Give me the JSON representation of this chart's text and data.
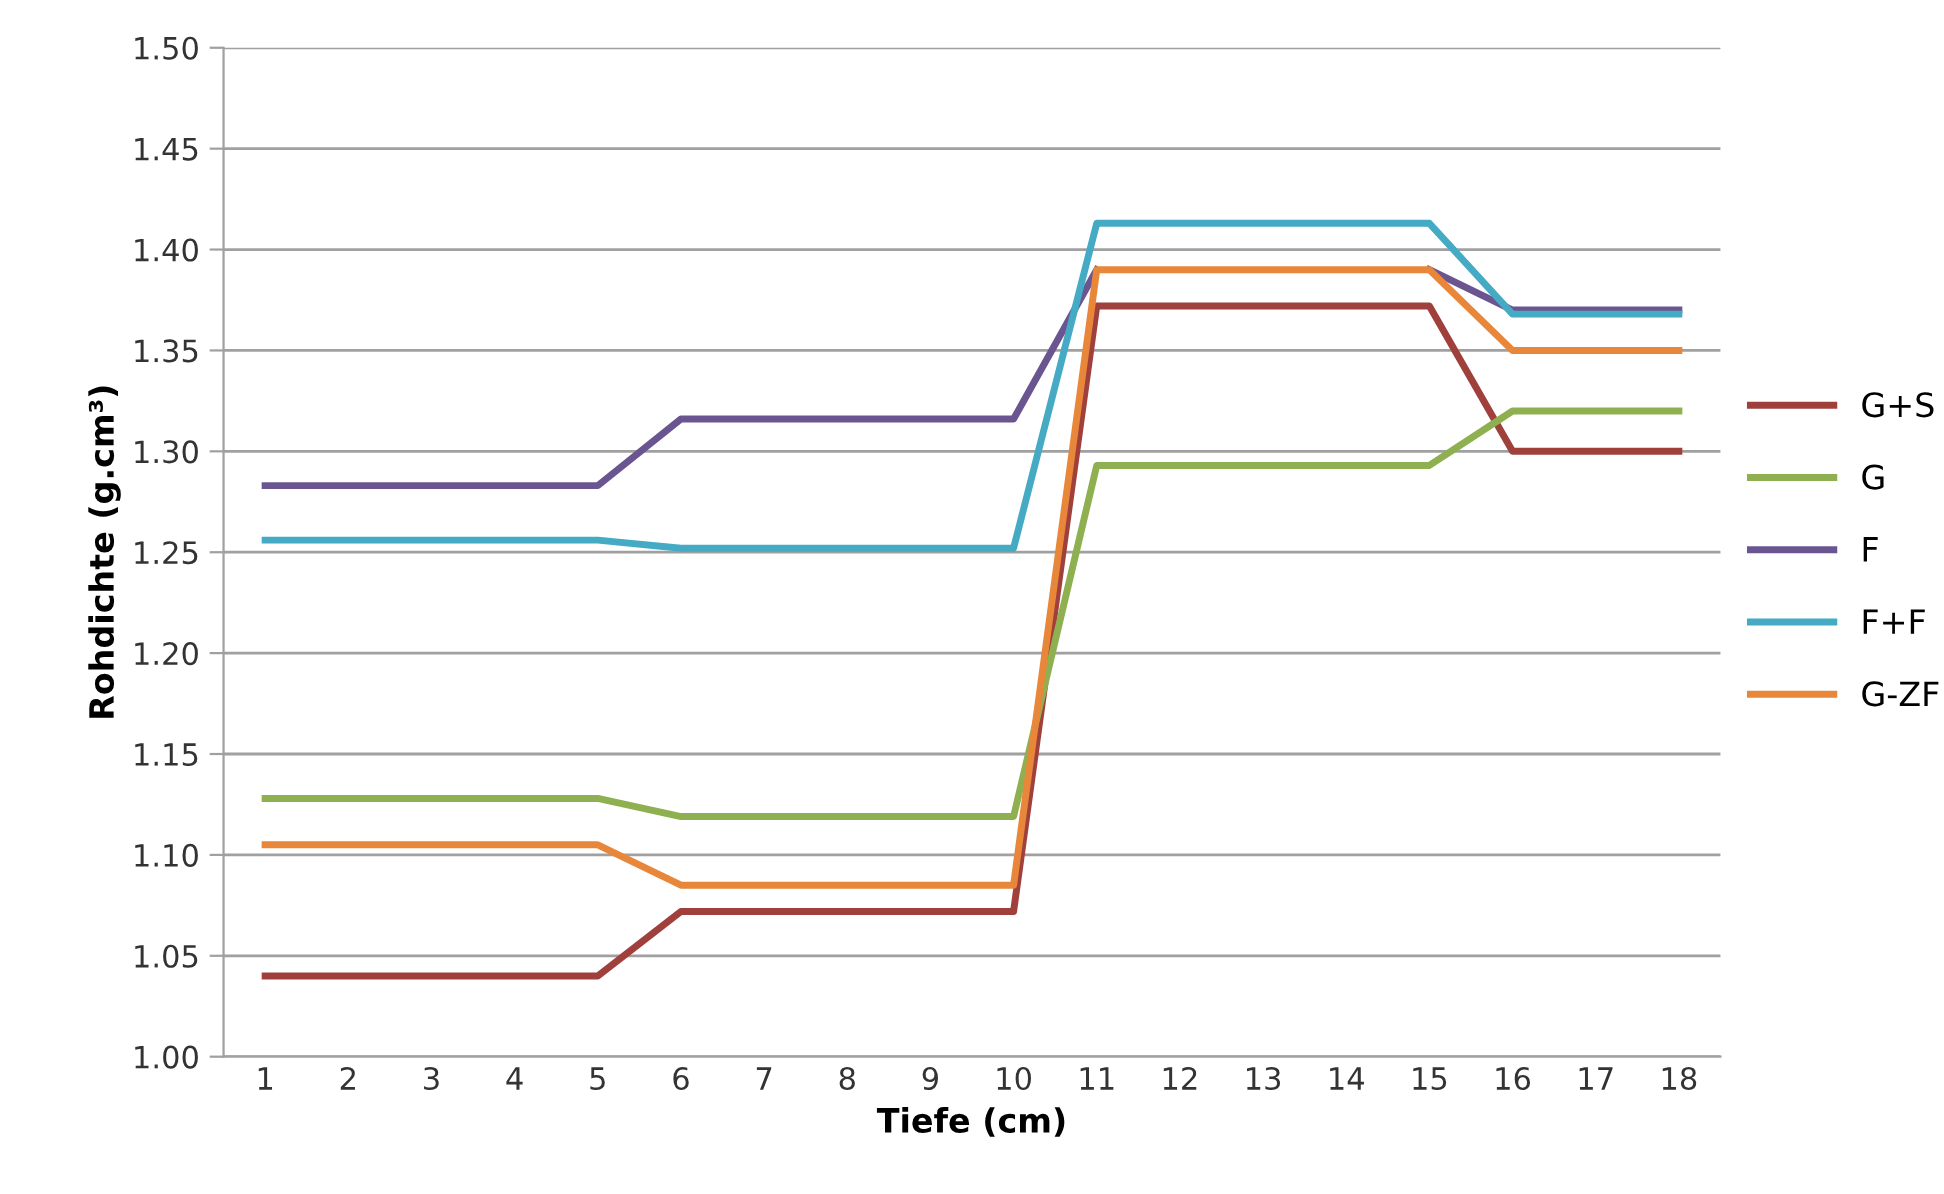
{
  "chart_data": {
    "type": "line",
    "xlabel": "Tiefe (cm)",
    "ylabel": "Rohdichte (g.cm³)",
    "categories": [
      "1",
      "2",
      "3",
      "4",
      "5",
      "6",
      "7",
      "8",
      "9",
      "10",
      "11",
      "12",
      "13",
      "14",
      "15",
      "16",
      "17",
      "18"
    ],
    "series": [
      {
        "name": "G+S",
        "color": "#a0403c",
        "values": [
          1.04,
          1.04,
          1.04,
          1.04,
          1.04,
          1.072,
          1.072,
          1.072,
          1.072,
          1.072,
          1.372,
          1.372,
          1.372,
          1.372,
          1.372,
          1.3,
          1.3,
          1.3
        ]
      },
      {
        "name": "G",
        "color": "#8fb050",
        "values": [
          1.128,
          1.128,
          1.128,
          1.128,
          1.128,
          1.119,
          1.119,
          1.119,
          1.119,
          1.119,
          1.293,
          1.293,
          1.293,
          1.293,
          1.293,
          1.32,
          1.32,
          1.32
        ]
      },
      {
        "name": "F",
        "color": "#6a5590",
        "values": [
          1.283,
          1.283,
          1.283,
          1.283,
          1.283,
          1.316,
          1.316,
          1.316,
          1.316,
          1.316,
          1.39,
          null,
          null,
          null,
          1.39,
          1.37,
          1.37,
          1.37
        ]
      },
      {
        "name": "F+F",
        "color": "#45aac4",
        "values": [
          1.256,
          1.256,
          1.256,
          1.256,
          1.256,
          1.252,
          1.252,
          1.252,
          1.252,
          1.252,
          1.413,
          1.413,
          1.413,
          1.413,
          1.413,
          1.368,
          1.368,
          1.368
        ]
      },
      {
        "name": "G-ZF",
        "color": "#e8873a",
        "values": [
          1.105,
          1.105,
          1.105,
          1.105,
          1.105,
          1.085,
          1.085,
          1.085,
          1.085,
          1.085,
          1.39,
          1.39,
          1.39,
          1.39,
          1.39,
          1.35,
          1.35,
          1.35
        ]
      }
    ],
    "ylim": [
      1.0,
      1.5
    ],
    "yticks": [
      {
        "value": 1.0,
        "label": "1.00"
      },
      {
        "value": 1.05,
        "label": "1.05"
      },
      {
        "value": 1.1,
        "label": "1.10"
      },
      {
        "value": 1.15,
        "label": "1.15"
      },
      {
        "value": 1.2,
        "label": "1.20"
      },
      {
        "value": 1.25,
        "label": "1.25"
      },
      {
        "value": 1.3,
        "label": "1.30"
      },
      {
        "value": 1.35,
        "label": "1.35"
      },
      {
        "value": 1.4,
        "label": "1.40"
      },
      {
        "value": 1.45,
        "label": "1.45"
      },
      {
        "value": 1.5,
        "label": "1.50"
      }
    ],
    "grid": "y",
    "legend": "right",
    "marker": "none",
    "line_style": "solid"
  }
}
